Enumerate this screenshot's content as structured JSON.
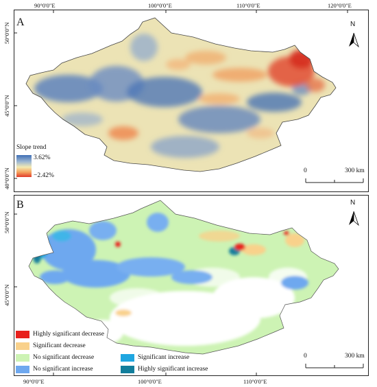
{
  "top_coordinate_labels": [
    "90°0'0\"E",
    "100°0'0\"E",
    "110°0'0\"E",
    "120°0'0\"E"
  ],
  "bottom_coordinate_labels": [
    "90°0'0\"E",
    "100°0'0\"E",
    "110°0'0\"E"
  ],
  "panel_a": {
    "letter": "A",
    "lat_labels": [
      "50°0'0\"N",
      "45°0'0\"N",
      "40°0'0\"N"
    ],
    "legend": {
      "title": "Slope trend",
      "max_label": "3.62%",
      "min_label": "−2.42%",
      "gradient_colors": [
        "#3f6fb5",
        "#9db7d3",
        "#f3eab2",
        "#f4a35e",
        "#e03a2a"
      ]
    },
    "scale_bar": {
      "start": "0",
      "end": "300 km"
    },
    "north": "N",
    "colors": {
      "blue": "#4a76b8",
      "light_blue": "#a9bfd6",
      "yellow": "#efe6b4",
      "orange": "#f1a261",
      "red": "#d93a2b"
    }
  },
  "panel_b": {
    "letter": "B",
    "lat_labels": [
      "50°0'0\"N",
      "45°0'0\"N"
    ],
    "legend_items": [
      {
        "label": "Highly significant decrease",
        "color": "#e8211d"
      },
      {
        "label": "Significant decrease",
        "color": "#f9d18b"
      },
      {
        "label": "No significant decrease",
        "color": "#cdf3b4"
      },
      {
        "label": "No significant increase",
        "color": "#6ea8ef"
      },
      {
        "label": "Significant increase",
        "color": "#1fa6e0"
      },
      {
        "label": "Highly significant increase",
        "color": "#127e9c"
      }
    ],
    "scale_bar": {
      "start": "0",
      "end": "300 km"
    },
    "north": "N"
  }
}
